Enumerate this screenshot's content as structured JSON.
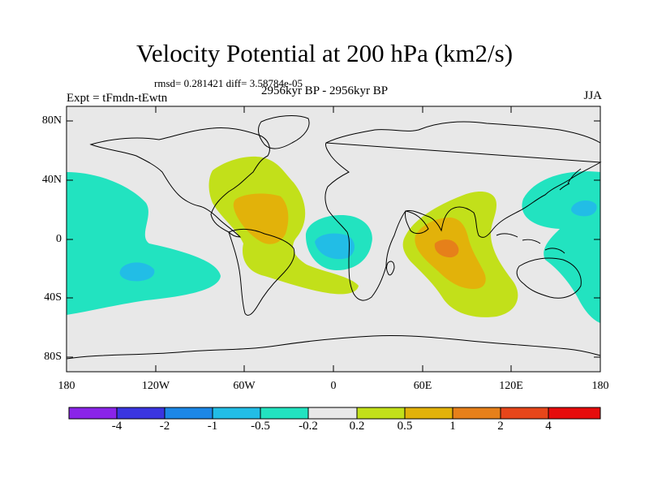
{
  "title": "Velocity Potential at 200 hPa (km2/s)",
  "stats": "rmsd= 0.281421 diff= 3.58784e-05",
  "left_label": "Expt = tFmdn-tEwtn",
  "center_label": "2956kyr BP - 2956kyr BP",
  "right_label": "JJA",
  "y_ticks": [
    "80N",
    "40N",
    "0",
    "40S",
    "80S"
  ],
  "x_ticks": [
    "180",
    "120W",
    "60W",
    "0",
    "60E",
    "120E",
    "180"
  ],
  "colorbar": {
    "labels": [
      "-4",
      "-2",
      "-1",
      "-0.5",
      "-0.2",
      "0.2",
      "0.5",
      "1",
      "2",
      "4"
    ],
    "colors": [
      "#8a24e8",
      "#3a35e0",
      "#1c87e6",
      "#22bde6",
      "#22e3c0",
      "#e8e8e8",
      "#c2e01a",
      "#e2b20a",
      "#e6801a",
      "#e6461a",
      "#e60c0c"
    ]
  },
  "map_colors": {
    "background": "#e8e8e8",
    "neg_weak": "#22e3c0",
    "neg_mid": "#22bde6",
    "pos_weak": "#c2e01a",
    "pos_mid": "#e2b20a",
    "pos_strong": "#e6801a"
  }
}
